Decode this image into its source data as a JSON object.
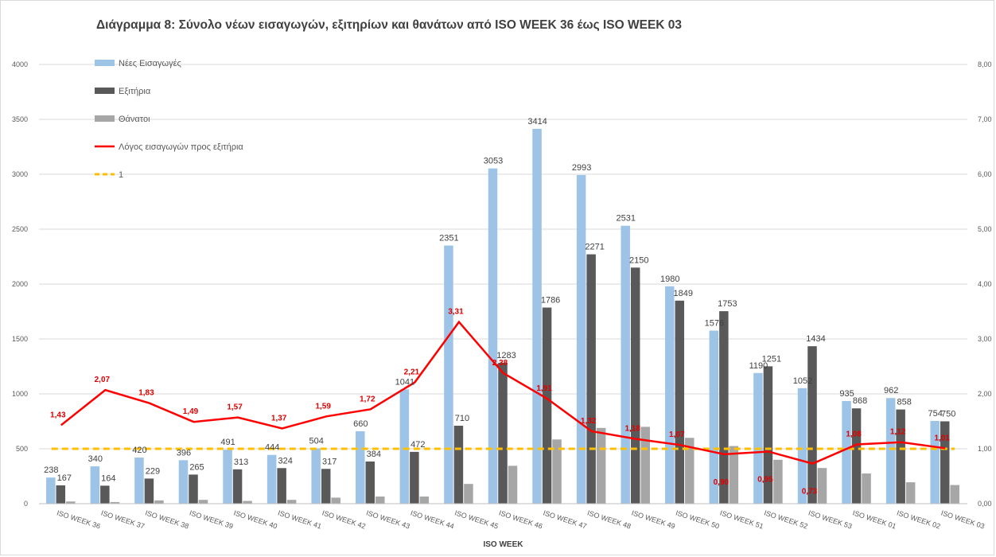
{
  "chart_data": {
    "type": "bar",
    "title": "Διάγραμμα 8: Σύνολο νέων εισαγωγών, εξιτηρίων και θανάτων από ISO WEEK 36 έως ISO WEEK 03",
    "xlabel": "ISO WEEK",
    "ylabel": "",
    "ylim": [
      0,
      4000
    ],
    "y2lim": [
      0,
      8
    ],
    "y_ticks": [
      "0",
      "500",
      "1000",
      "1500",
      "2000",
      "2500",
      "3000",
      "3500",
      "4000"
    ],
    "y2_ticks": [
      "0,00",
      "1,00",
      "2,00",
      "3,00",
      "4,00",
      "5,00",
      "6,00",
      "7,00",
      "8,00"
    ],
    "categories": [
      "ISO WEEK 36",
      "ISO WEEK 37",
      "ISO WEEK 38",
      "ISO WEEK 39",
      "ISO WEEK 40",
      "ISO WEEK 41",
      "ISO WEEK 42",
      "ISO WEEK 43",
      "ISO WEEK 44",
      "ISO WEEK 45",
      "ISO WEEK 46",
      "ISO WEEK 47",
      "ISO WEEK 48",
      "ISO WEEK 49",
      "ISO WEEK 50",
      "ISO WEEK 51",
      "ISO WEEK 52",
      "ISO WEEK 53",
      "ISO WEEK 01",
      "ISO WEEK 02",
      "ISO WEEK 03"
    ],
    "series": [
      {
        "name": "Νέες Εισαγωγές",
        "color": "#9dc3e6",
        "values": [
          238,
          340,
          420,
          396,
          491,
          444,
          504,
          660,
          1041,
          2351,
          3053,
          3414,
          2993,
          2531,
          1980,
          1576,
          1190,
          1052,
          935,
          962,
          754
        ],
        "labels": [
          "238",
          "340",
          "420",
          "396",
          "491",
          "444",
          "504",
          "660",
          "1041",
          "2351",
          "3053",
          "3414",
          "2993",
          "2531",
          "1980",
          "1576",
          "1190",
          "1052",
          "935",
          "962",
          "754"
        ]
      },
      {
        "name": "Εξιτήρια",
        "color": "#595959",
        "values": [
          167,
          164,
          229,
          265,
          313,
          324,
          317,
          384,
          472,
          710,
          1283,
          1786,
          2271,
          2150,
          1849,
          1753,
          1251,
          1434,
          868,
          858,
          750
        ],
        "labels": [
          "167",
          "164",
          "229",
          "265",
          "313",
          "324",
          "317",
          "384",
          "472",
          "710",
          "1283",
          "1786",
          "2271",
          "2150",
          "1849",
          "1753",
          "1251",
          "1434",
          "868",
          "858",
          "750"
        ]
      },
      {
        "name": "Θάνατοι",
        "color": "#a6a6a6",
        "values": [
          20,
          15,
          30,
          35,
          25,
          35,
          55,
          65,
          65,
          180,
          345,
          585,
          690,
          700,
          600,
          525,
          400,
          325,
          275,
          195,
          170
        ]
      },
      {
        "name": "Λόγος εισαγωγών προς εξιτήρια",
        "color": "#ff0000",
        "axis": "right",
        "values": [
          1.43,
          2.07,
          1.83,
          1.49,
          1.57,
          1.37,
          1.59,
          1.72,
          2.21,
          3.31,
          2.38,
          1.91,
          1.32,
          1.18,
          1.07,
          0.9,
          0.95,
          0.73,
          1.08,
          1.12,
          1.01
        ],
        "labels": [
          "1,43",
          "2,07",
          "1,83",
          "1,49",
          "1,57",
          "1,37",
          "1,59",
          "1,72",
          "2,21",
          "3,31",
          "2,38",
          "1,91",
          "1,32",
          "1,18",
          "1,07",
          "0,90",
          "0,95",
          "0,73",
          "1,08",
          "1,12",
          "1,01"
        ]
      },
      {
        "name": "1",
        "color": "#ffc000",
        "axis": "right",
        "style": "dashed",
        "value": 1
      }
    ],
    "grid": true,
    "legend_position": "top-left"
  }
}
